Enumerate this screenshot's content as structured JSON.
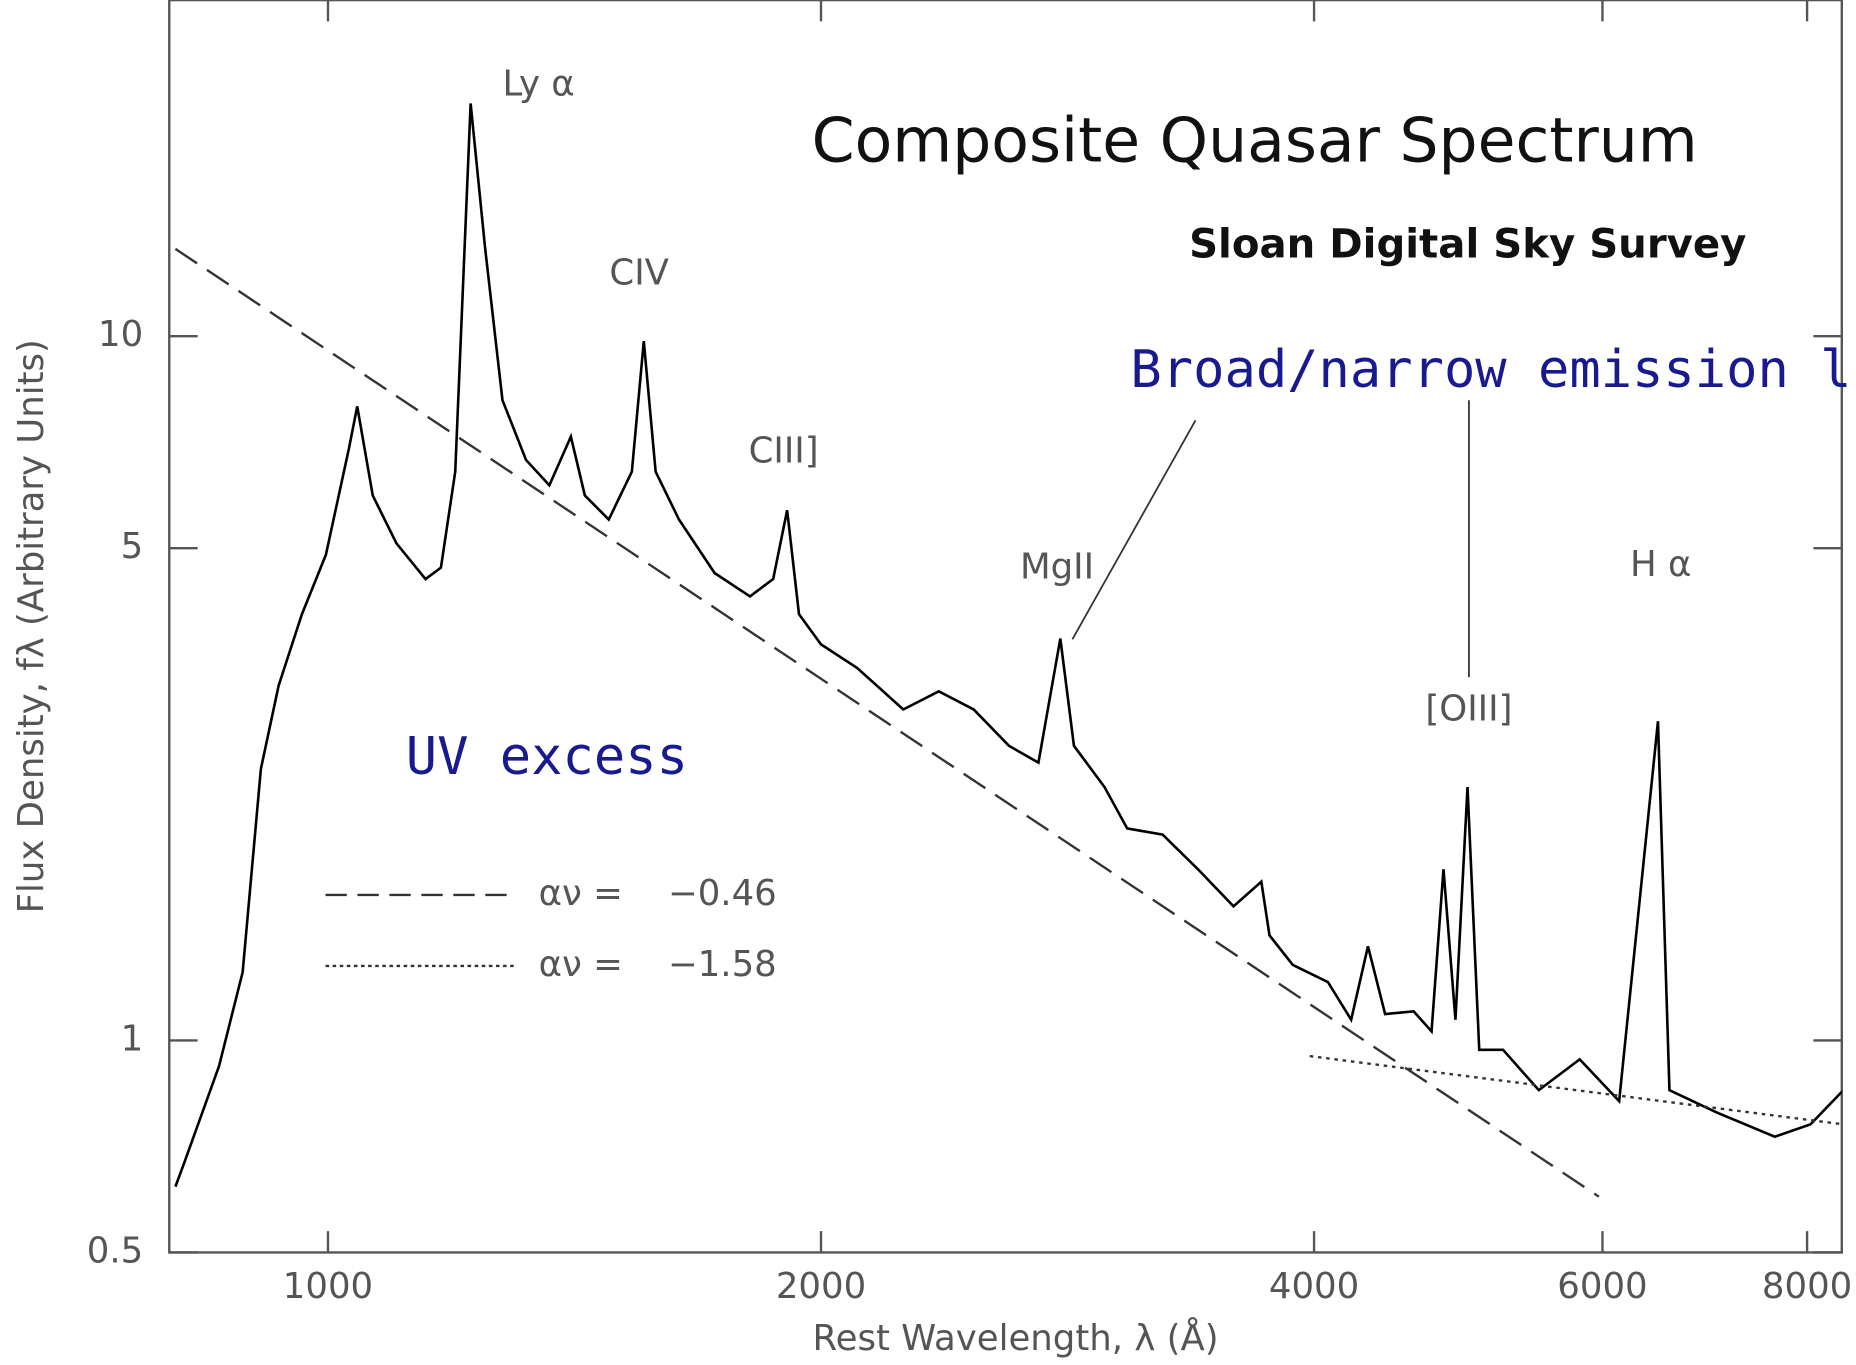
{
  "chart_data": {
    "type": "line",
    "title": "Composite Quasar Spectrum",
    "subtitle": "Sloan Digital Sky Survey",
    "x_label": "Rest Wavelength, λ (Å)",
    "y_label": "Flux Density, fλ (Arbitrary Units)",
    "log_x": true,
    "log_y": true,
    "xlim": [
      800,
      8400
    ],
    "ylim": [
      0.5,
      30
    ],
    "xticks": [
      1000,
      2000,
      4000,
      6000,
      8000
    ],
    "yticks": [
      0.5,
      1,
      5,
      10
    ],
    "annotations": [
      "Ly α",
      "CIV",
      "CIII]",
      "MgII",
      "[OIII]",
      "H α",
      "UV excess",
      "Broad/narrow emission lines"
    ],
    "series": [
      {
        "color": "#000000",
        "style": "solid",
        "x": [
          807,
          817,
          858,
          887,
          910,
          933,
          964,
          997,
          1030,
          1042,
          1065,
          1101,
          1147,
          1172,
          1196,
          1222,
          1247,
          1278,
          1321,
          1365,
          1407,
          1435,
          1484,
          1533,
          1559,
          1585,
          1638,
          1722,
          1810,
          1870,
          1907,
          1939,
          2000,
          2104,
          2245,
          2360,
          2479,
          2605,
          2715,
          2800,
          2854,
          2979,
          3076,
          3233,
          3398,
          3572,
          3714,
          3757,
          3882,
          4079,
          4214,
          4315,
          4420,
          4601,
          4718,
          4798,
          4880,
          4963,
          5046,
          5217,
          5486,
          5811,
          6142,
          6487,
          6593,
          7048,
          7645,
          8038,
          8420
        ],
        "values": [
          0.62,
          0.67,
          0.92,
          1.25,
          2.43,
          3.19,
          4.03,
          4.89,
          6.94,
          7.95,
          5.94,
          5.08,
          4.52,
          4.69,
          6.42,
          21.4,
          13.4,
          8.11,
          6.67,
          6.14,
          7.2,
          5.94,
          5.49,
          6.42,
          9.84,
          6.42,
          5.49,
          4.61,
          4.27,
          4.52,
          5.66,
          4.03,
          3.65,
          3.38,
          2.95,
          3.13,
          2.95,
          2.62,
          2.48,
          3.72,
          2.62,
          2.29,
          2.0,
          1.96,
          1.75,
          1.55,
          1.68,
          1.41,
          1.28,
          1.21,
          1.07,
          1.36,
          1.09,
          1.1,
          1.03,
          1.75,
          1.07,
          2.29,
          0.97,
          0.97,
          0.85,
          0.94,
          0.82,
          2.84,
          0.85,
          0.79,
          0.73,
          0.76,
          0.85
        ]
      },
      {
        "name": "αν =    −0.46",
        "color": "#333333",
        "style": "dashed",
        "x": [
          807,
          5970
        ],
        "values": [
          13.3,
          0.6
        ]
      },
      {
        "name": "αν =    −1.58",
        "color": "#333333",
        "style": "dotted",
        "x": [
          3976,
          8420
        ],
        "values": [
          0.95,
          0.76
        ]
      }
    ]
  }
}
